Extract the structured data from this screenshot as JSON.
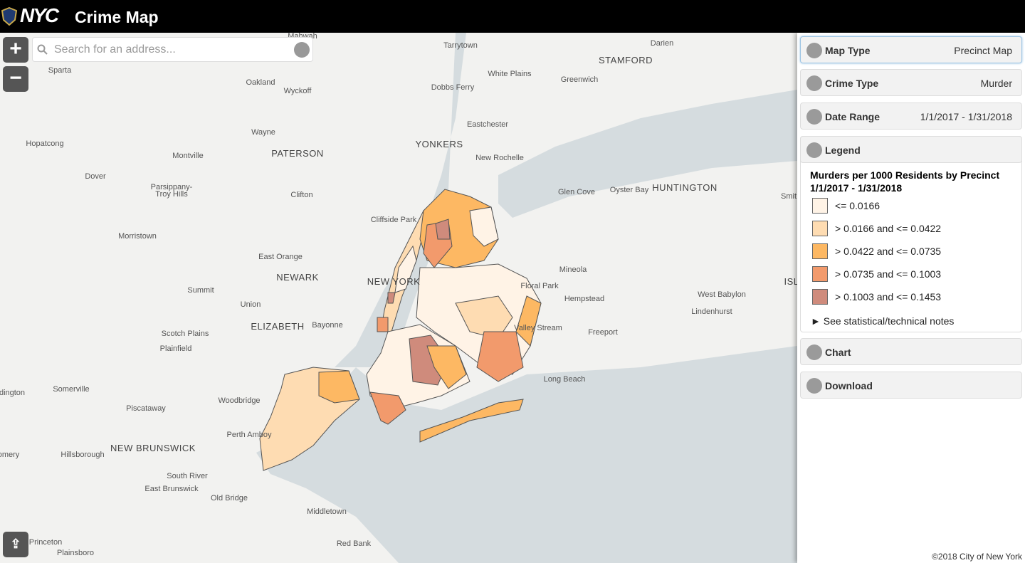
{
  "header": {
    "logo": "NYC",
    "title": "Crime Map"
  },
  "search": {
    "placeholder": "Search for an address..."
  },
  "map_labels": [
    "Mahwah",
    "Tarrytown",
    "Darien",
    "Sparta",
    "Oakland",
    "Wyckoff",
    "White Plains",
    "STAMFORD",
    "Greenwich",
    "Dobbs Ferry",
    "Eastchester",
    "Hopatcong",
    "Wayne",
    "Montville",
    "PATERSON",
    "YONKERS",
    "New Rochelle",
    "Dover",
    "Parsippany-",
    "Troy Hills",
    "Clifton",
    "Glen Cove",
    "Oyster Bay",
    "HUNTINGTON",
    "Smit",
    "Cliffside Park",
    "Morristown",
    "East Orange",
    "Mineola",
    "NEWARK",
    "NEW YORK",
    "Floral Park",
    "ISL",
    "Summit",
    "Hempstead",
    "West Babylon",
    "Union",
    "Lindenhurst",
    "ELIZABETH",
    "Bayonne",
    "Valley Stream",
    "Freeport",
    "Scotch Plains",
    "Plainfield",
    "Long Beach",
    "dington",
    "Somerville",
    "Woodbridge",
    "Piscataway",
    "Perth Amboy",
    "NEW BRUNSWICK",
    "omery",
    "Hillsborough",
    "South River",
    "East Brunswick",
    "Old Bridge",
    "Middletown",
    "Princeton",
    "Red Bank",
    "Plainsboro"
  ],
  "panel": {
    "sections": [
      {
        "title": "Map Type",
        "value": "Precinct Map"
      },
      {
        "title": "Crime Type",
        "value": "Murder"
      },
      {
        "title": "Date Range",
        "value": "1/1/2017 - 1/31/2018"
      }
    ],
    "legend": {
      "title": "Legend",
      "heading": "Murders per 1000 Residents by Precinct",
      "subheading": "1/1/2017 - 1/31/2018",
      "items": [
        {
          "label": "<= 0.0166",
          "color": "#fff3e6"
        },
        {
          "label": "> 0.0166 and <= 0.0422",
          "color": "#fedcb2"
        },
        {
          "label": "> 0.0422 and <= 0.0735",
          "color": "#fdb863"
        },
        {
          "label": "> 0.0735 and <= 0.1003",
          "color": "#f29a6c"
        },
        {
          "label": "> 0.1003 and <= 0.1453",
          "color": "#cf8b7c"
        }
      ],
      "notes": "► See statistical/technical notes"
    },
    "bottom_sections": [
      "Chart",
      "Download"
    ]
  },
  "footer": "©2018 City of New York"
}
